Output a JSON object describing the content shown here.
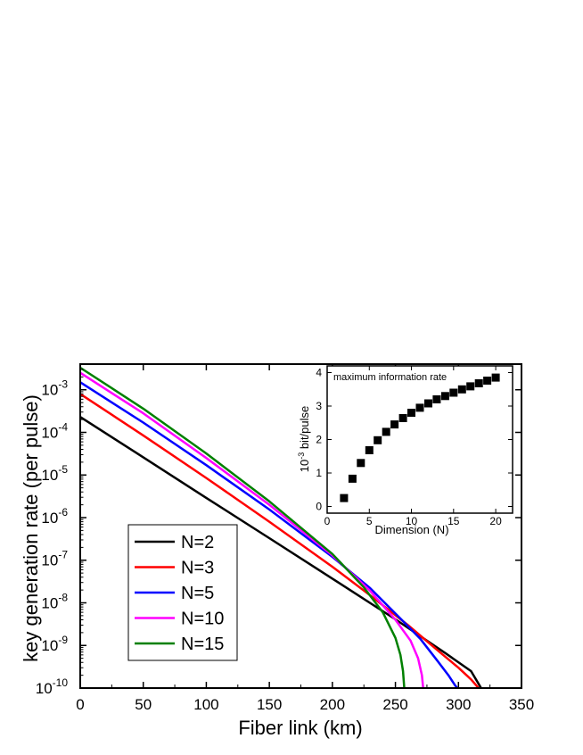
{
  "chart_data": [
    {
      "type": "line",
      "xlabel": "Fiber link (km)",
      "ylabel": "key generation rate (per pulse)",
      "xlim": [
        0,
        350
      ],
      "ylim": [
        1e-10,
        0.004
      ],
      "yscale": "log",
      "x_ticks": [
        "0",
        "50",
        "100",
        "150",
        "200",
        "250",
        "300",
        "350"
      ],
      "y_ticks": [
        {
          "base": "10",
          "exp": "-10",
          "value": 1e-10
        },
        {
          "base": "10",
          "exp": "-9",
          "value": 1e-09
        },
        {
          "base": "10",
          "exp": "-8",
          "value": 1e-08
        },
        {
          "base": "10",
          "exp": "-7",
          "value": 1e-07
        },
        {
          "base": "10",
          "exp": "-6",
          "value": 1e-06
        },
        {
          "base": "10",
          "exp": "-5",
          "value": 1e-05
        },
        {
          "base": "10",
          "exp": "-4",
          "value": 0.0001
        },
        {
          "base": "10",
          "exp": "-3",
          "value": 0.001
        }
      ],
      "legend_position": "bottom-left",
      "series": [
        {
          "name": "N=2",
          "color": "#000000",
          "points": [
            [
              0,
              0.00023
            ],
            [
              50,
              2.6e-05
            ],
            [
              100,
              2.9e-06
            ],
            [
              150,
              3.3e-07
            ],
            [
              200,
              3.7e-08
            ],
            [
              250,
              4.1e-09
            ],
            [
              290,
              6.5e-10
            ],
            [
              310,
              2.5e-10
            ],
            [
              318,
              1e-10
            ]
          ]
        },
        {
          "name": "N=3",
          "color": "#ff0000",
          "points": [
            [
              0,
              0.0008
            ],
            [
              50,
              8.5e-05
            ],
            [
              100,
              8.5e-06
            ],
            [
              150,
              8e-07
            ],
            [
              200,
              7e-08
            ],
            [
              230,
              1.5e-08
            ],
            [
              260,
              3e-09
            ],
            [
              285,
              7e-10
            ],
            [
              300,
              3e-10
            ],
            [
              310,
              1.6e-10
            ],
            [
              316,
              1e-10
            ]
          ]
        },
        {
          "name": "N=5",
          "color": "#0000ff",
          "points": [
            [
              0,
              0.0015
            ],
            [
              50,
              0.00017
            ],
            [
              100,
              1.7e-05
            ],
            [
              150,
              1.55e-06
            ],
            [
              200,
              1.2e-07
            ],
            [
              230,
              2.2e-08
            ],
            [
              255,
              4e-09
            ],
            [
              270,
              1.4e-09
            ],
            [
              283,
              4.5e-10
            ],
            [
              292,
              2e-10
            ],
            [
              297,
              1.2e-10
            ],
            [
              299,
              1e-10
            ]
          ]
        },
        {
          "name": "N=10",
          "color": "#ff00ff",
          "points": [
            [
              0,
              0.0025
            ],
            [
              50,
              0.00028
            ],
            [
              100,
              2.5e-05
            ],
            [
              150,
              2e-06
            ],
            [
              200,
              1.3e-07
            ],
            [
              230,
              1.9e-08
            ],
            [
              250,
              4e-09
            ],
            [
              262,
              1.3e-09
            ],
            [
              268,
              5e-10
            ],
            [
              271,
              2e-10
            ],
            [
              272,
              1e-10
            ]
          ]
        },
        {
          "name": "N=15",
          "color": "#008000",
          "points": [
            [
              0,
              0.0033
            ],
            [
              50,
              0.00036
            ],
            [
              100,
              3.2e-05
            ],
            [
              150,
              2.4e-06
            ],
            [
              200,
              1.4e-07
            ],
            [
              225,
              2.3e-08
            ],
            [
              240,
              6e-09
            ],
            [
              250,
              1.5e-09
            ],
            [
              254,
              6e-10
            ],
            [
              256,
              2.5e-10
            ],
            [
              257,
              1e-10
            ]
          ]
        }
      ]
    },
    {
      "type": "scatter",
      "title": "maximum information rate",
      "xlabel": "Dimension (N)",
      "ylabel_base": "10",
      "ylabel_exp": "-3",
      "ylabel_rest": " bit/pulse",
      "xlim": [
        0,
        22
      ],
      "ylim": [
        -0.2,
        4.2
      ],
      "x_ticks": [
        "0",
        "5",
        "10",
        "15",
        "20"
      ],
      "y_ticks": [
        "0",
        "1",
        "2",
        "3",
        "4"
      ],
      "x": [
        2,
        3,
        4,
        5,
        6,
        7,
        8,
        9,
        10,
        11,
        12,
        13,
        14,
        15,
        16,
        17,
        18,
        19,
        20
      ],
      "y": [
        0.25,
        0.83,
        1.3,
        1.68,
        1.98,
        2.23,
        2.45,
        2.64,
        2.8,
        2.95,
        3.08,
        3.2,
        3.3,
        3.4,
        3.5,
        3.59,
        3.68,
        3.76,
        3.85
      ]
    }
  ]
}
